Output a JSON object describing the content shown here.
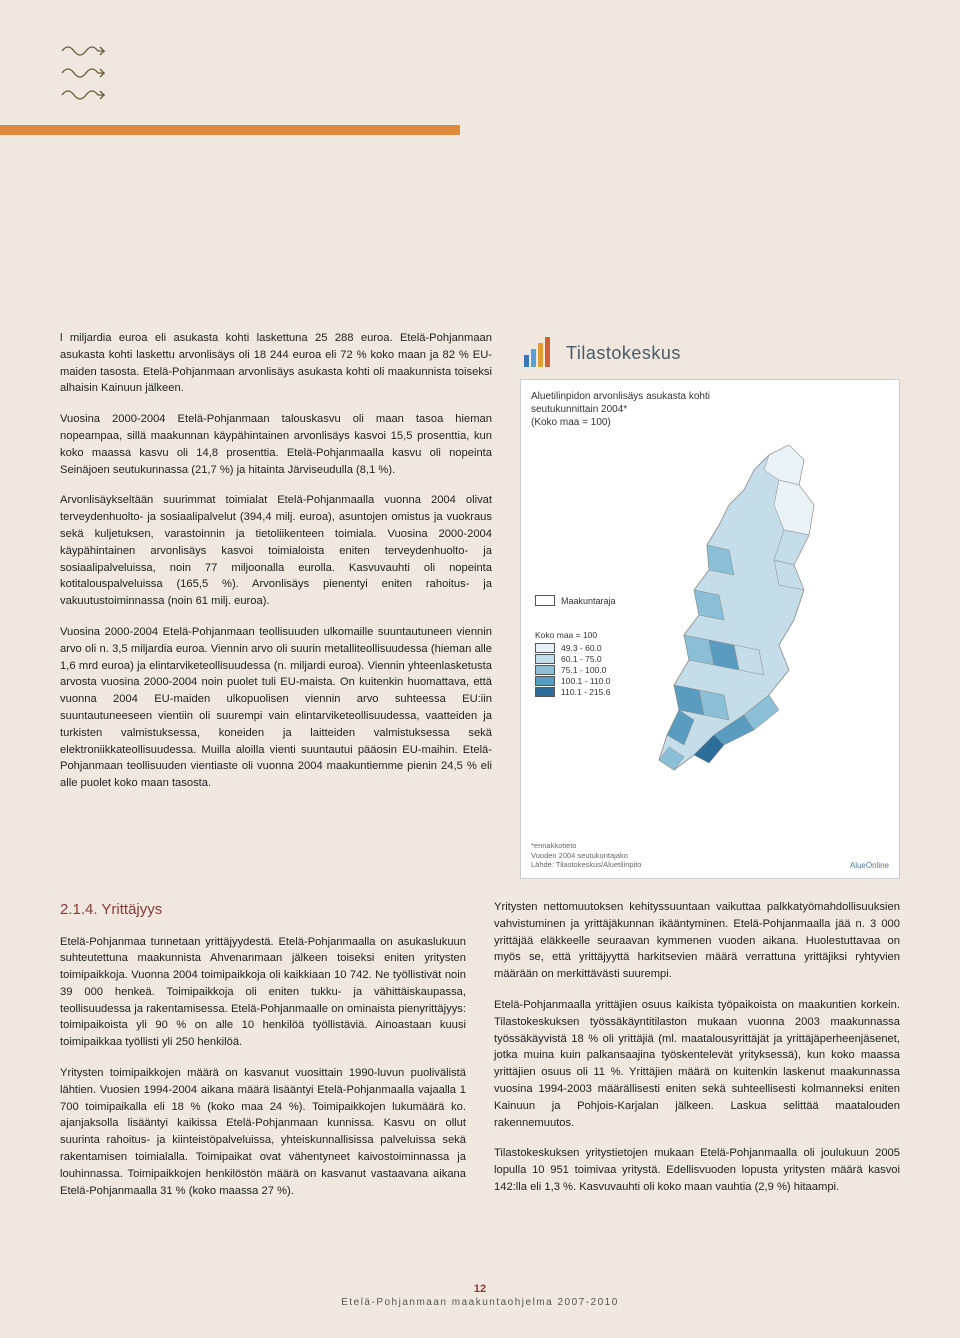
{
  "document": {
    "p1": "l miljardia euroa eli asukasta kohti laskettuna 25 288 euroa. Etelä-Pohjanmaan asukasta kohti laskettu arvonlisäys oli 18 244 euroa eli 72 % koko maan ja 82 % EU-maiden tasosta. Etelä-Pohjanmaan arvonlisäys asukasta kohti oli maakunnista toiseksi alhaisin Kainuun jälkeen.",
    "p2": "Vuosina 2000-2004 Etelä-Pohjanmaan talouskasvu oli maan tasoa hieman nopeampaa, sillä maakunnan käypähintainen arvonlisäys kasvoi 15,5 prosenttia, kun koko maassa kasvu oli 14,8 prosenttia. Etelä-Pohjanmaalla kasvu oli nopeinta Seinäjoen seutukunnassa (21,7 %) ja hitainta Järviseudulla (8,1 %).",
    "p3": "Arvonlisäykseltään suurimmat toimialat Etelä-Pohjanmaalla vuonna 2004 olivat terveydenhuolto- ja sosiaalipalvelut (394,4 milj. euroa), asuntojen omistus ja vuokraus sekä kuljetuksen, varastoinnin ja tietoliikenteen toimiala. Vuosina 2000-2004 käypähintainen arvonlisäys kasvoi toimialoista eniten terveydenhuolto- ja sosiaalipalveluissa, noin 77 miljoonalla eurolla. Kasvuvauhti oli nopeinta kotitalouspalveluissa (165,5 %). Arvonlisäys pienentyi eniten rahoitus- ja vakuutustoiminnassa (noin 61 milj. euroa).",
    "p4": "Vuosina 2000-2004 Etelä-Pohjanmaan teollisuuden ulkomaille suuntautuneen viennin arvo oli n. 3,5 miljardia euroa. Viennin arvo oli suurin metalliteollisuudessa (hieman alle 1,6 mrd euroa) ja elintarviketeollisuudessa (n. miljardi euroa). Viennin yhteenlasketusta arvosta vuosina 2000-2004 noin puolet tuli EU-maista. On kuitenkin huomattava, että vuonna 2004 EU-maiden ulkopuolisen viennin arvo suhteessa EU:iin suuntautuneeseen vientiin oli suurempi vain elintarviketeollisuudessa, vaatteiden ja turkisten valmistuksessa, koneiden ja laitteiden valmistuksessa sekä elektroniikkateollisuudessa. Muilla aloilla vienti suuntautui pääosin EU-maihin. Etelä-Pohjanmaan teollisuuden vientiaste oli vuonna 2004 maakuntiemme pienin 24,5 % eli alle puolet koko maan tasosta."
  },
  "section": {
    "heading": "2.1.4. Yrittäjyys",
    "left": {
      "p1": "Etelä-Pohjanmaa tunnetaan yrittäjyydestä. Etelä-Pohjanmaalla on asukaslukuun suhteutettuna maakunnista Ahvenanmaan jälkeen toiseksi eniten yritysten toimipaikkoja. Vuonna 2004 toimipaikkoja oli kaikkiaan 10 742. Ne työllistivät noin 39 000 henkeä. Toimipaikkoja oli eniten tukku- ja vähittäiskaupassa, teollisuudessa ja rakentamisessa. Etelä-Pohjanmaalle on ominaista pienyrittäjyys: toimipaikoista yli 90 % on alle 10 henkilöä työllistäviä. Ainoastaan kuusi toimipaikkaa työllisti yli 250 henkilöä.",
      "p2": "Yritysten toimipaikkojen määrä on kasvanut vuosittain 1990-luvun puolivälistä lähtien. Vuosien 1994-2004 aikana määrä lisääntyi Etelä-Pohjanmaalla vajaalla 1 700 toimipaikalla eli 18 % (koko maa 24 %). Toimipaikkojen lukumäärä ko. ajanjaksolla lisääntyi kaikissa Etelä-Pohjanmaan kunnissa. Kasvu on ollut suurinta rahoitus- ja kiinteistöpalveluissa, yhteiskunnallisissa palveluissa sekä rakentamisen toimialalla. Toimipaikat ovat vähentyneet kaivostoiminnassa ja louhinnassa. Toimipaikkojen henkilöstön määrä on kasvanut vastaavana aikana Etelä-Pohjanmaalla 31 % (koko maassa 27 %)."
    },
    "right": {
      "p1": "Yritysten nettomuutoksen kehityssuuntaan vaikuttaa palkkatyömahdollisuuksien vahvistuminen ja yrittäjäkunnan ikääntyminen. Etelä-Pohjanmaalla jää n. 3 000 yrittäjää eläkkeelle seuraavan kymmenen vuoden aikana. Huolestuttavaa on myös se, että yrittäjyyttä harkitsevien määrä verrattuna yrittäjiksi ryhtyvien määrään on merkittävästi suurempi.",
      "p2": "Etelä-Pohjanmaalla yrittäjien osuus kaikista työpaikoista on maakuntien korkein. Tilastokeskuksen työssäkäyntitilaston mukaan vuonna 2003 maakunnassa työssäkäyvistä 18 % oli yrittäjiä (ml. maatalousyrittäjät ja yrittäjäperheenjäsenet, jotka muina kuin palkansaajina työskentelevät yrityksessä), kun koko maassa yrittäjien osuus oli 11 %. Yrittäjien määrä on kuitenkin laskenut maakunnassa vuosina 1994-2003 määrällisesti eniten sekä suhteellisesti kolmanneksi eniten Kainuun ja Pohjois-Karjalan jälkeen. Laskua selittää maatalouden rakennemuutos.",
      "p3": "Tilastokeskuksen yritystietojen mukaan Etelä-Pohjanmaalla oli joulukuun 2005 lopulla 10 951 toimivaa yritystä. Edellisvuoden lopusta yritysten määrä kasvoi 142:lla eli 1,3 %. Kasvuvauhti oli koko maan vauhtia (2,9 %) hitaampi."
    }
  },
  "chart": {
    "org_title": "Tilastokeskus",
    "title_line1": "Aluetilinpidon arvonlisäys asukasta kohti",
    "title_line2": "seutukunnittain 2004*",
    "title_line3": "(Koko maa = 100)",
    "legend_border_label": "Maakuntaraja",
    "legend_scale_title": "Koko maa = 100",
    "scale": [
      {
        "label": "49.3 - 60.0",
        "color": "#e8f2f7"
      },
      {
        "label": "60.1 - 75.0",
        "color": "#c4dde9"
      },
      {
        "label": "75.1 - 100.0",
        "color": "#8bbfd6"
      },
      {
        "label": "100.1 - 110.0",
        "color": "#5a9bc0"
      },
      {
        "label": "110.1 - 215.6",
        "color": "#2c6d9a"
      }
    ],
    "footnote1": "*ennakkotieto",
    "footnote2": "Vuoden 2004 seutukuntajako",
    "footnote3": "Lähde: Tilastokeskus/Aluetilinpito",
    "brand": "AlueOnline"
  },
  "footer": {
    "page_number": "12",
    "text": "Etelä-Pohjanmaan maakuntaohjelma 2007-2010"
  },
  "colors": {
    "accent_orange": "#e08a3a",
    "heading_red": "#8a3a3a",
    "bg": "#f0e8df"
  }
}
